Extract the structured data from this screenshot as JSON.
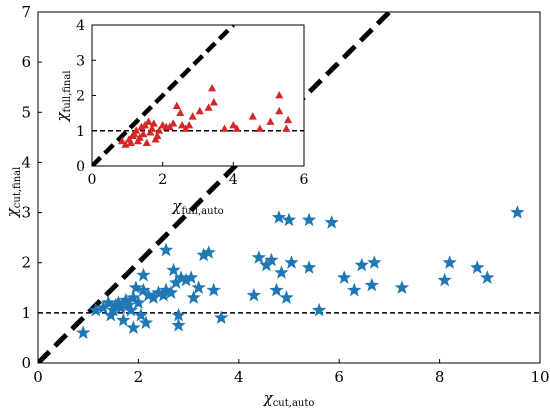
{
  "chart_data": [
    {
      "type": "scatter",
      "panel": "main",
      "xlabel": "χ",
      "xlabel_sub": "cut,auto",
      "ylabel": "χ",
      "ylabel_sub": "cut,final",
      "xlim": [
        0,
        10
      ],
      "ylim": [
        0,
        7
      ],
      "xticks": [
        0,
        2,
        4,
        6,
        8,
        10
      ],
      "yticks": [
        0,
        1,
        2,
        3,
        4,
        5,
        6,
        7
      ],
      "grid": false,
      "legend": "none",
      "reference_lines": [
        {
          "kind": "identity",
          "style": "thick-dashed",
          "color": "#000000"
        },
        {
          "kind": "horizontal",
          "y": 1,
          "style": "dashed",
          "color": "#000000"
        }
      ],
      "series": [
        {
          "marker": "star",
          "color": "#1f77b4",
          "points": [
            [
              0.9,
              0.6
            ],
            [
              1.15,
              1.05
            ],
            [
              1.3,
              1.1
            ],
            [
              1.4,
              1.2
            ],
            [
              1.45,
              0.95
            ],
            [
              1.5,
              1.05
            ],
            [
              1.55,
              1.15
            ],
            [
              1.6,
              1.2
            ],
            [
              1.65,
              1.1
            ],
            [
              1.7,
              0.85
            ],
            [
              1.75,
              1.25
            ],
            [
              1.8,
              1.15
            ],
            [
              1.85,
              1.05
            ],
            [
              1.9,
              0.7
            ],
            [
              1.9,
              1.3
            ],
            [
              1.95,
              1.5
            ],
            [
              2.0,
              1.2
            ],
            [
              2.05,
              0.95
            ],
            [
              2.1,
              1.45
            ],
            [
              2.1,
              1.75
            ],
            [
              2.15,
              0.8
            ],
            [
              2.2,
              1.35
            ],
            [
              2.3,
              1.3
            ],
            [
              2.4,
              1.4
            ],
            [
              2.5,
              1.35
            ],
            [
              2.55,
              1.45
            ],
            [
              2.55,
              2.25
            ],
            [
              2.65,
              1.4
            ],
            [
              2.7,
              1.85
            ],
            [
              2.75,
              1.6
            ],
            [
              2.8,
              0.95
            ],
            [
              2.8,
              0.75
            ],
            [
              2.85,
              1.7
            ],
            [
              2.95,
              1.65
            ],
            [
              3.05,
              1.7
            ],
            [
              3.1,
              1.3
            ],
            [
              3.2,
              1.5
            ],
            [
              3.3,
              2.15
            ],
            [
              3.4,
              2.2
            ],
            [
              3.5,
              1.45
            ],
            [
              3.65,
              0.9
            ],
            [
              4.3,
              1.35
            ],
            [
              4.4,
              2.1
            ],
            [
              4.55,
              1.95
            ],
            [
              4.65,
              2.05
            ],
            [
              4.75,
              1.45
            ],
            [
              4.8,
              2.9
            ],
            [
              4.85,
              1.8
            ],
            [
              4.95,
              1.3
            ],
            [
              5.0,
              2.85
            ],
            [
              5.05,
              2.0
            ],
            [
              5.4,
              1.9
            ],
            [
              5.4,
              2.85
            ],
            [
              5.6,
              1.05
            ],
            [
              5.85,
              2.8
            ],
            [
              6.1,
              1.7
            ],
            [
              6.3,
              1.45
            ],
            [
              6.45,
              1.95
            ],
            [
              6.65,
              1.55
            ],
            [
              6.7,
              2.0
            ],
            [
              7.25,
              1.5
            ],
            [
              8.1,
              1.65
            ],
            [
              8.2,
              2.0
            ],
            [
              8.75,
              1.9
            ],
            [
              8.95,
              1.7
            ],
            [
              9.55,
              3.0
            ]
          ]
        }
      ]
    },
    {
      "type": "scatter",
      "panel": "inset",
      "xlabel": "χ",
      "xlabel_sub": "full,auto",
      "ylabel": "χ",
      "ylabel_sub": "full,final",
      "xlim": [
        0,
        6
      ],
      "ylim": [
        0,
        4
      ],
      "xticks": [
        0,
        2,
        4,
        6
      ],
      "yticks": [
        0,
        1,
        2,
        3,
        4
      ],
      "grid": false,
      "legend": "none",
      "reference_lines": [
        {
          "kind": "identity",
          "style": "thick-dashed",
          "color": "#000000"
        },
        {
          "kind": "horizontal",
          "y": 1,
          "style": "dashed",
          "color": "#000000"
        }
      ],
      "series": [
        {
          "marker": "triangle",
          "color": "#d62728",
          "points": [
            [
              0.85,
              0.7
            ],
            [
              0.95,
              0.6
            ],
            [
              1.05,
              0.75
            ],
            [
              1.1,
              0.65
            ],
            [
              1.15,
              0.85
            ],
            [
              1.2,
              0.9
            ],
            [
              1.25,
              1.0
            ],
            [
              1.3,
              0.7
            ],
            [
              1.35,
              0.8
            ],
            [
              1.4,
              1.1
            ],
            [
              1.45,
              0.9
            ],
            [
              1.5,
              1.15
            ],
            [
              1.55,
              0.65
            ],
            [
              1.6,
              1.25
            ],
            [
              1.65,
              0.95
            ],
            [
              1.7,
              1.05
            ],
            [
              1.75,
              1.2
            ],
            [
              1.8,
              0.75
            ],
            [
              1.85,
              0.85
            ],
            [
              1.9,
              1.0
            ],
            [
              2.0,
              1.15
            ],
            [
              2.1,
              1.1
            ],
            [
              2.2,
              1.1
            ],
            [
              2.3,
              1.2
            ],
            [
              2.4,
              1.7
            ],
            [
              2.5,
              1.5
            ],
            [
              2.55,
              1.15
            ],
            [
              2.65,
              1.05
            ],
            [
              2.75,
              1.15
            ],
            [
              2.85,
              1.4
            ],
            [
              3.05,
              1.55
            ],
            [
              3.3,
              1.65
            ],
            [
              3.4,
              2.2
            ],
            [
              3.45,
              1.8
            ],
            [
              3.75,
              1.05
            ],
            [
              4.0,
              1.15
            ],
            [
              4.1,
              1.05
            ],
            [
              4.55,
              1.4
            ],
            [
              4.75,
              1.05
            ],
            [
              5.05,
              1.25
            ],
            [
              5.3,
              1.55
            ],
            [
              5.3,
              2.0
            ],
            [
              5.5,
              1.05
            ],
            [
              5.55,
              1.3
            ]
          ]
        }
      ]
    }
  ]
}
